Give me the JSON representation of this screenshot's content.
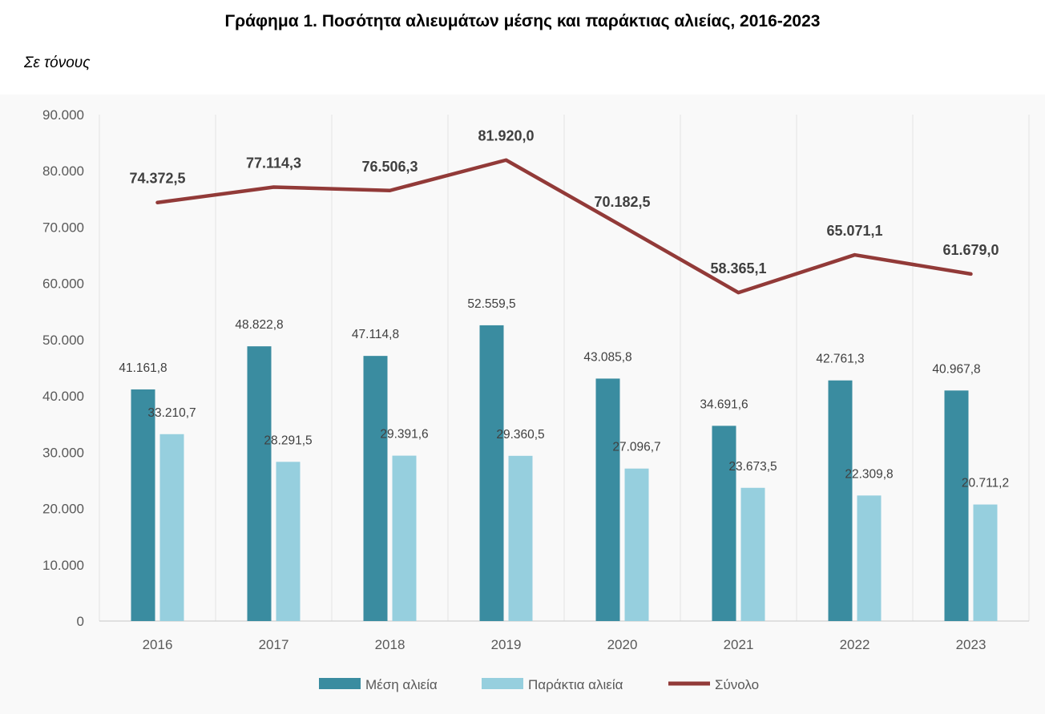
{
  "chart_data": {
    "type": "bar",
    "title": "Γράφημα 1. Ποσότητα αλιευμάτων μέσης και παράκτιας αλιείας, 2016-2023",
    "subtitle": "Σε τόνους",
    "categories": [
      "2016",
      "2017",
      "2018",
      "2019",
      "2020",
      "2021",
      "2022",
      "2023"
    ],
    "ylim": [
      0,
      90000
    ],
    "yticks": [
      0,
      10000,
      20000,
      30000,
      40000,
      50000,
      60000,
      70000,
      80000,
      90000
    ],
    "ytick_labels": [
      "0",
      "10.000",
      "20.000",
      "30.000",
      "40.000",
      "50.000",
      "60.000",
      "70.000",
      "80.000",
      "90.000"
    ],
    "grid": "vertical",
    "legend_position": "bottom",
    "series": [
      {
        "name": "Μέση αλιεία",
        "type": "bar",
        "color": "#3A8CA0",
        "values": [
          41161.8,
          48822.8,
          47114.8,
          52559.5,
          43085.8,
          34691.6,
          42761.3,
          40967.8
        ],
        "labels": [
          "41.161,8",
          "48.822,8",
          "47.114,8",
          "52.559,5",
          "43.085,8",
          "34.691,6",
          "42.761,3",
          "40.967,8"
        ]
      },
      {
        "name": "Παράκτια αλιεία",
        "type": "bar",
        "color": "#96CFDE",
        "values": [
          33210.7,
          28291.5,
          29391.6,
          29360.5,
          27096.7,
          23673.5,
          22309.8,
          20711.2
        ],
        "labels": [
          "33.210,7",
          "28.291,5",
          "29.391,6",
          "29.360,5",
          "27.096,7",
          "23.673,5",
          "22.309,8",
          "20.711,2"
        ]
      },
      {
        "name": "Σύνολο",
        "type": "line",
        "color": "#923A38",
        "values": [
          74372.5,
          77114.3,
          76506.3,
          81920.0,
          70182.5,
          58365.1,
          65071.1,
          61679.0
        ],
        "labels": [
          "74.372,5",
          "77.114,3",
          "76.506,3",
          "81.920,0",
          "70.182,5",
          "58.365,1",
          "65.071,1",
          "61.679,0"
        ]
      }
    ]
  }
}
